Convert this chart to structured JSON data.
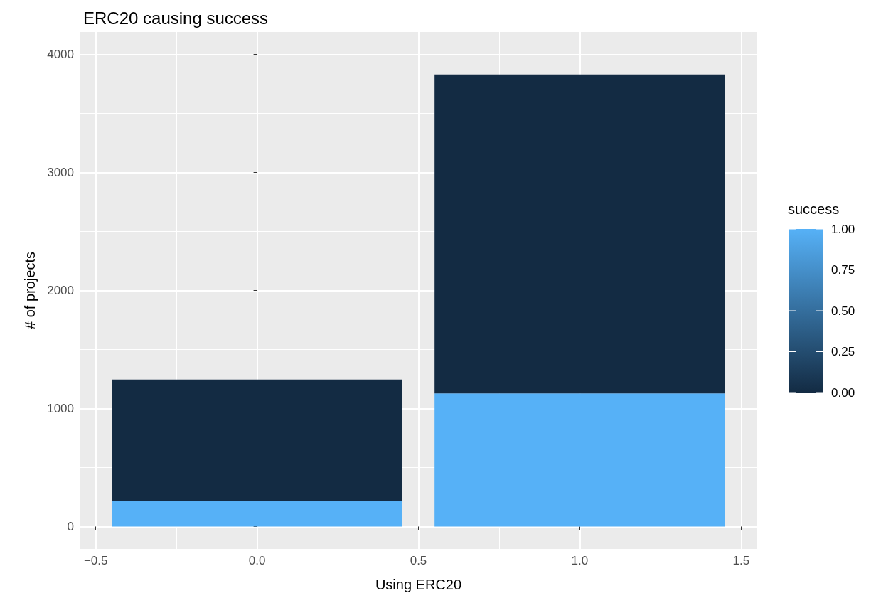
{
  "chart_data": {
    "type": "bar",
    "title": "ERC20 causing success",
    "xlabel": "Using ERC20",
    "ylabel": "# of projects",
    "clabel": "success",
    "x": [
      0,
      1
    ],
    "stacked": true,
    "series": [
      {
        "color": "#56b1f7",
        "values": [
          217,
          1128
        ]
      },
      {
        "color": "#132b43",
        "values": [
          1028,
          2702
        ]
      }
    ],
    "clim": [
      0,
      1
    ],
    "cticks": [
      {
        "value": 0,
        "label": "0.00"
      },
      {
        "value": 0.25,
        "label": "0.25"
      },
      {
        "value": 0.5,
        "label": "0.50"
      },
      {
        "value": 0.75,
        "label": "0.75"
      },
      {
        "value": 1,
        "label": "1.00"
      }
    ],
    "xlim": [
      -0.55,
      1.55
    ],
    "xticks": [
      {
        "value": -0.5,
        "label": "−0.5"
      },
      {
        "value": 0,
        "label": "0.0"
      },
      {
        "value": 0.5,
        "label": "0.5"
      },
      {
        "value": 1,
        "label": "1.0"
      },
      {
        "value": 1.5,
        "label": "1.5"
      }
    ],
    "ylim": [
      -190,
      4190
    ],
    "yticks": [
      0,
      1000,
      2000,
      3000,
      4000
    ],
    "grid": true
  }
}
